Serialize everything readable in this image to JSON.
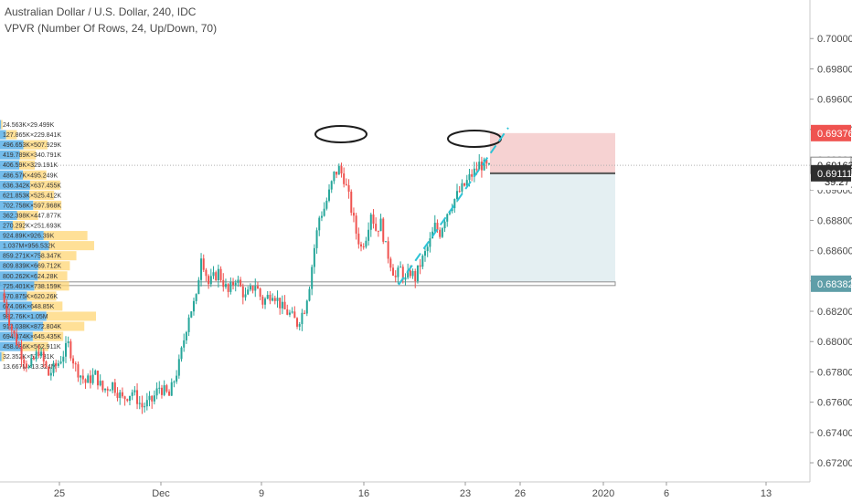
{
  "header": {
    "title": "Australian Dollar / U.S. Dollar, 240, IDC",
    "indicator": "VPVR (Number Of Rows, 24, Up/Down, 70)"
  },
  "colors": {
    "up": "#26a69a",
    "down": "#ef5350",
    "vp_up": "#5ab0e8",
    "vp_down": "#ffd36b",
    "sl_zone": "#f6d2d2",
    "tp_zone": "#e4eff2",
    "price_red": "#ef5350",
    "price_dark": "#2e2e2e",
    "price_teal": "#5f9ea8"
  },
  "chart_data": {
    "type": "candlestick",
    "yaxis_ticks": [
      "0.70000",
      "0.69800",
      "0.69600",
      "0.69400",
      "0.69200",
      "0.69000",
      "0.68800",
      "0.68600",
      "0.68400",
      "0.68200",
      "0.68000",
      "0.67800",
      "0.67600",
      "0.67400",
      "0.67200"
    ],
    "ylim": [
      0.6714,
      0.7014
    ],
    "xaxis_ticks": [
      "25",
      "Dec",
      "9",
      "16",
      "23",
      "26",
      "2020",
      "6",
      "13"
    ],
    "price_labels": [
      {
        "text": "0.69376",
        "value": 0.69376,
        "style": "red"
      },
      {
        "text": "0.69163",
        "value": 0.69163,
        "style": "light"
      },
      {
        "text": "39:27",
        "value": 0.69055,
        "style": "white"
      },
      {
        "text": "0.69111",
        "value": 0.69111,
        "style": "dark"
      },
      {
        "text": "0.68382",
        "value": 0.68382,
        "style": "teal"
      }
    ],
    "path": [
      [
        0,
        0.6832
      ],
      [
        4,
        0.6808
      ],
      [
        8,
        0.6792
      ],
      [
        11,
        0.6782
      ],
      [
        15,
        0.6794
      ],
      [
        19,
        0.6778
      ],
      [
        23,
        0.6786
      ],
      [
        27,
        0.6798
      ],
      [
        30,
        0.6783
      ],
      [
        34,
        0.6773
      ],
      [
        38,
        0.6778
      ],
      [
        41,
        0.6768
      ],
      [
        45,
        0.6772
      ],
      [
        49,
        0.6762
      ],
      [
        53,
        0.6767
      ],
      [
        57,
        0.6757
      ],
      [
        61,
        0.6761
      ],
      [
        64,
        0.677
      ],
      [
        68,
        0.6764
      ],
      [
        72,
        0.6785
      ],
      [
        76,
        0.6818
      ],
      [
        79,
        0.6828
      ],
      [
        81,
        0.6858
      ],
      [
        84,
        0.6838
      ],
      [
        88,
        0.6846
      ],
      [
        92,
        0.6832
      ],
      [
        95,
        0.6842
      ],
      [
        99,
        0.6829
      ],
      [
        103,
        0.6838
      ],
      [
        106,
        0.6826
      ],
      [
        110,
        0.6833
      ],
      [
        114,
        0.6822
      ],
      [
        117,
        0.6818
      ],
      [
        120,
        0.6812
      ],
      [
        123,
        0.6822
      ],
      [
        125,
        0.6838
      ],
      [
        127,
        0.6862
      ],
      [
        129,
        0.6882
      ],
      [
        131,
        0.6888
      ],
      [
        133,
        0.6898
      ],
      [
        135,
        0.691
      ],
      [
        137,
        0.6914
      ],
      [
        139,
        0.6908
      ],
      [
        141,
        0.6895
      ],
      [
        144,
        0.6872
      ],
      [
        146,
        0.6862
      ],
      [
        148,
        0.687
      ],
      [
        150,
        0.6886
      ],
      [
        152,
        0.6874
      ],
      [
        154,
        0.6878
      ],
      [
        156,
        0.6862
      ],
      [
        158,
        0.6852
      ],
      [
        160,
        0.6842
      ],
      [
        162,
        0.6848
      ],
      [
        164,
        0.684
      ],
      [
        166,
        0.6846
      ],
      [
        168,
        0.6842
      ],
      [
        170,
        0.6851
      ],
      [
        172,
        0.6858
      ],
      [
        174,
        0.6866
      ],
      [
        176,
        0.6876
      ],
      [
        178,
        0.6872
      ],
      [
        180,
        0.6882
      ],
      [
        182,
        0.6889
      ],
      [
        184,
        0.6894
      ],
      [
        186,
        0.6899
      ],
      [
        188,
        0.6903
      ],
      [
        190,
        0.6908
      ],
      [
        192,
        0.6912
      ],
      [
        194,
        0.6917
      ],
      [
        196,
        0.6916
      ],
      [
        198,
        0.6914
      ]
    ],
    "volume_profile": [
      {
        "label": "24.563K×29.499K",
        "up": 24.563,
        "down": 29.499
      },
      {
        "label": "127.865K×229.841K",
        "up": 127.865,
        "down": 229.841
      },
      {
        "label": "496.653K×507.929K",
        "up": 496.653,
        "down": 507.929
      },
      {
        "label": "419.789K×340.791K",
        "up": 419.789,
        "down": 340.791
      },
      {
        "label": "406.59K×329.191K",
        "up": 406.59,
        "down": 329.191
      },
      {
        "label": "486.57K×495.249K",
        "up": 486.57,
        "down": 495.249
      },
      {
        "label": "636.342K×637.455K",
        "up": 636.342,
        "down": 637.455
      },
      {
        "label": "621.853K×525.412K",
        "up": 621.853,
        "down": 525.412
      },
      {
        "label": "702.758K×597.968K",
        "up": 702.758,
        "down": 597.968
      },
      {
        "label": "362.398K×447.877K",
        "up": 362.398,
        "down": 447.877
      },
      {
        "label": "270.292K×251.693K",
        "up": 270.292,
        "down": 251.693
      },
      {
        "label": "924.89K×926.39K",
        "up": 924.89,
        "down": 926.39
      },
      {
        "label": "1.037M×956.532K",
        "up": 1037,
        "down": 956.532
      },
      {
        "label": "859.271K×758.347K",
        "up": 859.271,
        "down": 758.347
      },
      {
        "label": "809.839K×669.712K",
        "up": 809.839,
        "down": 669.712
      },
      {
        "label": "800.262K×624.28K",
        "up": 800.262,
        "down": 624.28
      },
      {
        "label": "725.401K×738.159K",
        "up": 725.401,
        "down": 738.159
      },
      {
        "label": "570.875K×620.26K",
        "up": 570.875,
        "down": 620.26
      },
      {
        "label": "674.06K×648.85K",
        "up": 674.06,
        "down": 648.85
      },
      {
        "label": "982.76K×1.05M",
        "up": 982.76,
        "down": 1050
      },
      {
        "label": "913.038K×872.804K",
        "up": 913.038,
        "down": 872.804
      },
      {
        "label": "694.374K×645.435K",
        "up": 694.374,
        "down": 645.435
      },
      {
        "label": "458.036K×562.911K",
        "up": 458.036,
        "down": 562.911
      },
      {
        "label": "32.352K×57.731K",
        "up": 32.352,
        "down": 57.731
      },
      {
        "label": "13.667M×13.324M",
        "up": 0,
        "down": 0
      }
    ]
  }
}
